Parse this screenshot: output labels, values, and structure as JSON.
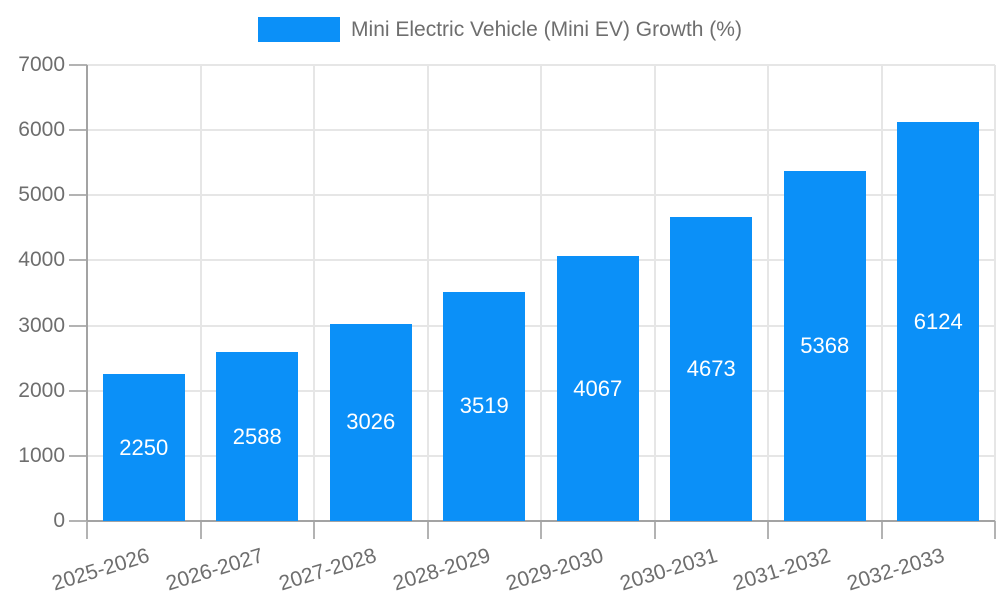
{
  "legend": {
    "label": "Mini Electric Vehicle (Mini EV) Growth (%)"
  },
  "chart_data": {
    "type": "bar",
    "title": "",
    "xlabel": "",
    "ylabel": "",
    "categories": [
      "2025-2026",
      "2026-2027",
      "2027-2028",
      "2028-2029",
      "2029-2030",
      "2030-2031",
      "2031-2032",
      "2032-2033"
    ],
    "values": [
      2250,
      2588,
      3026,
      3519,
      4067,
      4673,
      5368,
      6124
    ],
    "series_name": "Mini Electric Vehicle (Mini EV) Growth (%)",
    "ylim": [
      0,
      7000
    ],
    "yticks": [
      0,
      1000,
      2000,
      3000,
      4000,
      5000,
      6000,
      7000
    ],
    "grid": true,
    "legend_position": "top",
    "value_labels": "inside-center"
  },
  "colors": {
    "bar": "#0b90f8",
    "axis": "#a3a3a3",
    "grid": "#e6e6e6",
    "tick": "#b3b3b3",
    "tick_label": "#6e6e6e",
    "legend_text": "#6e6e6e",
    "value_label": "#ffffff",
    "background": "#ffffff"
  }
}
